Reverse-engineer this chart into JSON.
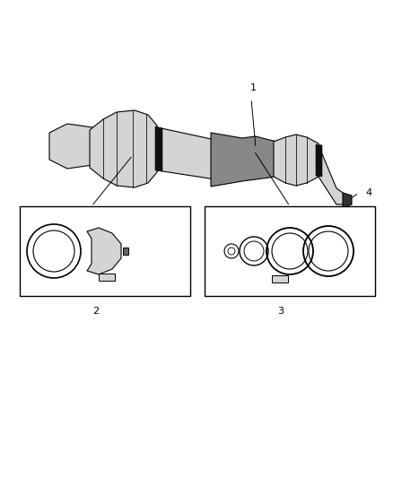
{
  "bg_color": "#ffffff",
  "title": "",
  "fig_width": 4.38,
  "fig_height": 5.33,
  "dpi": 100,
  "label1": "1",
  "label2": "2",
  "label3": "3",
  "label4": "4",
  "line_color": "#000000",
  "box_color": "#000000",
  "part_color": "#555555",
  "part_outline": "#000000"
}
